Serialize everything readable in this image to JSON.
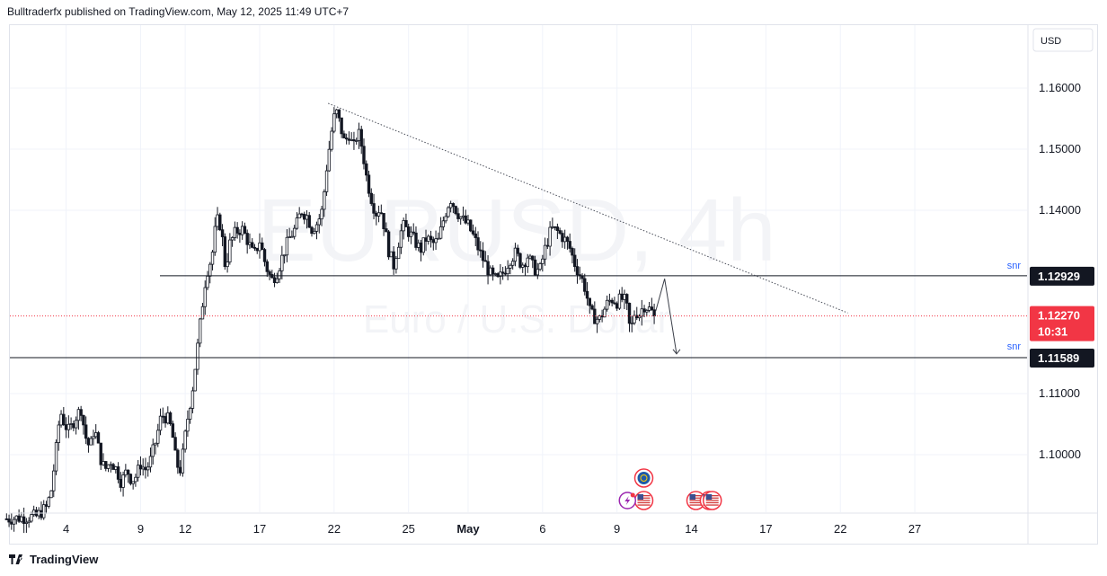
{
  "header": {
    "text": "Bulltraderfx published on TradingView.com, May 12, 2025 11:49 UTC+7"
  },
  "watermark": {
    "symbol": "EURUSD, 4h",
    "name": "Euro / U.S. Dollar"
  },
  "footer": {
    "brand": "TradingView"
  },
  "colors": {
    "up": "#131722",
    "down": "#131722",
    "price_line": "#f23645",
    "snr": "#2962ff",
    "grid": "#f0f3fa",
    "axis_text": "#131722"
  },
  "chart_data": {
    "type": "candlestick",
    "currency": "USD",
    "ylim": [
      1.0905,
      1.1695
    ],
    "y_ticks": [
      "1.16000",
      "1.15000",
      "1.14000",
      "1.11000",
      "1.10000"
    ],
    "x_ticks": [
      "4",
      "9",
      "12",
      "17",
      "22",
      "25",
      "May",
      "6",
      "9",
      "14",
      "17",
      "22",
      "27"
    ],
    "x_tick_positions": [
      4,
      9,
      12,
      17,
      22,
      27,
      31,
      36,
      41,
      46,
      51,
      56,
      61
    ],
    "candle_index": {
      "start": 0,
      "last": 43.6
    },
    "horizontal_levels": [
      {
        "label": "snr",
        "value": 1.12929,
        "badge": "1.12929"
      },
      {
        "label": "snr",
        "value": 1.11589,
        "badge": "1.11589"
      }
    ],
    "current_price": {
      "value": 1.1227,
      "badge": "1.12270",
      "countdown": "10:31"
    },
    "trendline": {
      "from": [
        21.6,
        1.1575
      ],
      "to": [
        56.5,
        1.1232
      ]
    },
    "projection_arrow": [
      [
        43.6,
        1.1235
      ],
      [
        44.2,
        1.1288
      ],
      [
        45.0,
        1.1165
      ]
    ],
    "close_path": [
      [
        0.0,
        1.0895
      ],
      [
        2.0,
        1.0899
      ],
      [
        2.7,
        1.0914
      ],
      [
        3.0,
        1.0942
      ],
      [
        3.3,
        1.1002
      ],
      [
        3.6,
        1.1072
      ],
      [
        3.9,
        1.105
      ],
      [
        4.2,
        1.1038
      ],
      [
        4.6,
        1.106
      ],
      [
        5.0,
        1.1075
      ],
      [
        5.3,
        1.103
      ],
      [
        5.6,
        1.101
      ],
      [
        5.9,
        1.1045
      ],
      [
        6.3,
        1.0995
      ],
      [
        6.6,
        1.0975
      ],
      [
        7.0,
        1.099
      ],
      [
        7.4,
        1.0975
      ],
      [
        7.7,
        1.0955
      ],
      [
        8.1,
        1.0975
      ],
      [
        8.4,
        1.0958
      ],
      [
        8.7,
        1.0965
      ],
      [
        9.0,
        1.0985
      ],
      [
        9.3,
        1.0975
      ],
      [
        9.6,
        1.0985
      ],
      [
        10.0,
        1.102
      ],
      [
        10.4,
        1.1065
      ],
      [
        10.8,
        1.106
      ],
      [
        11.1,
        1.104
      ],
      [
        11.4,
        1.0985
      ],
      [
        11.7,
        1.0975
      ],
      [
        12.1,
        1.105
      ],
      [
        12.5,
        1.111
      ],
      [
        12.8,
        1.117
      ],
      [
        13.1,
        1.1235
      ],
      [
        13.4,
        1.1295
      ],
      [
        13.8,
        1.1325
      ],
      [
        14.1,
        1.1385
      ],
      [
        14.4,
        1.1375
      ],
      [
        14.7,
        1.1305
      ],
      [
        15.0,
        1.1345
      ],
      [
        15.4,
        1.1365
      ],
      [
        15.8,
        1.137
      ],
      [
        16.2,
        1.135
      ],
      [
        16.6,
        1.1325
      ],
      [
        17.0,
        1.135
      ],
      [
        17.4,
        1.131
      ],
      [
        17.8,
        1.1285
      ],
      [
        18.2,
        1.13
      ],
      [
        18.6,
        1.133
      ],
      [
        19.0,
        1.1355
      ],
      [
        19.4,
        1.137
      ],
      [
        19.8,
        1.14
      ],
      [
        20.2,
        1.139
      ],
      [
        20.5,
        1.137
      ],
      [
        20.9,
        1.138
      ],
      [
        21.2,
        1.14
      ],
      [
        21.5,
        1.147
      ],
      [
        21.8,
        1.1525
      ],
      [
        22.1,
        1.1565
      ],
      [
        22.4,
        1.154
      ],
      [
        22.7,
        1.151
      ],
      [
        23.0,
        1.1525
      ],
      [
        23.3,
        1.15
      ],
      [
        23.6,
        1.153
      ],
      [
        23.9,
        1.15
      ],
      [
        24.2,
        1.145
      ],
      [
        24.5,
        1.142
      ],
      [
        24.8,
        1.1395
      ],
      [
        25.1,
        1.1405
      ],
      [
        25.4,
        1.137
      ],
      [
        25.7,
        1.133
      ],
      [
        26.0,
        1.131
      ],
      [
        26.3,
        1.1345
      ],
      [
        26.6,
        1.1375
      ],
      [
        27.0,
        1.1365
      ],
      [
        27.4,
        1.135
      ],
      [
        27.8,
        1.1335
      ],
      [
        28.2,
        1.1355
      ],
      [
        28.6,
        1.1345
      ],
      [
        29.0,
        1.135
      ],
      [
        29.4,
        1.139
      ],
      [
        29.8,
        1.142
      ],
      [
        30.2,
        1.14
      ],
      [
        30.6,
        1.1385
      ],
      [
        31.0,
        1.1375
      ],
      [
        31.4,
        1.1355
      ],
      [
        31.8,
        1.133
      ],
      [
        32.2,
        1.131
      ],
      [
        32.6,
        1.129
      ],
      [
        33.0,
        1.1285
      ],
      [
        33.4,
        1.13
      ],
      [
        33.8,
        1.132
      ],
      [
        34.2,
        1.133
      ],
      [
        34.6,
        1.131
      ],
      [
        35.0,
        1.1325
      ],
      [
        35.4,
        1.1305
      ],
      [
        35.8,
        1.13
      ],
      [
        36.2,
        1.134
      ],
      [
        36.6,
        1.137
      ],
      [
        37.0,
        1.1365
      ],
      [
        37.4,
        1.1355
      ],
      [
        37.8,
        1.134
      ],
      [
        38.2,
        1.131
      ],
      [
        38.6,
        1.129
      ],
      [
        38.9,
        1.127
      ],
      [
        39.2,
        1.123
      ],
      [
        39.5,
        1.1225
      ],
      [
        39.8,
        1.122
      ],
      [
        40.1,
        1.1235
      ],
      [
        40.4,
        1.125
      ],
      [
        40.7,
        1.1255
      ],
      [
        41.0,
        1.125
      ],
      [
        41.3,
        1.1255
      ],
      [
        41.6,
        1.125
      ],
      [
        41.9,
        1.12
      ],
      [
        42.2,
        1.1235
      ],
      [
        42.5,
        1.123
      ],
      [
        42.8,
        1.1245
      ],
      [
        43.1,
        1.124
      ],
      [
        43.6,
        1.1227
      ]
    ],
    "events": [
      {
        "type": "flag-us",
        "x": 42.8,
        "row": 1
      },
      {
        "type": "globe",
        "x": 42.8,
        "row": 2
      },
      {
        "type": "flash",
        "x": 41.7,
        "row": 1
      },
      {
        "type": "flag-us",
        "x": 46.3,
        "row": 1
      },
      {
        "type": "flag-us",
        "x": 47.2,
        "row": 1
      },
      {
        "type": "flag-us",
        "x": 47.4,
        "row": 1
      }
    ]
  }
}
